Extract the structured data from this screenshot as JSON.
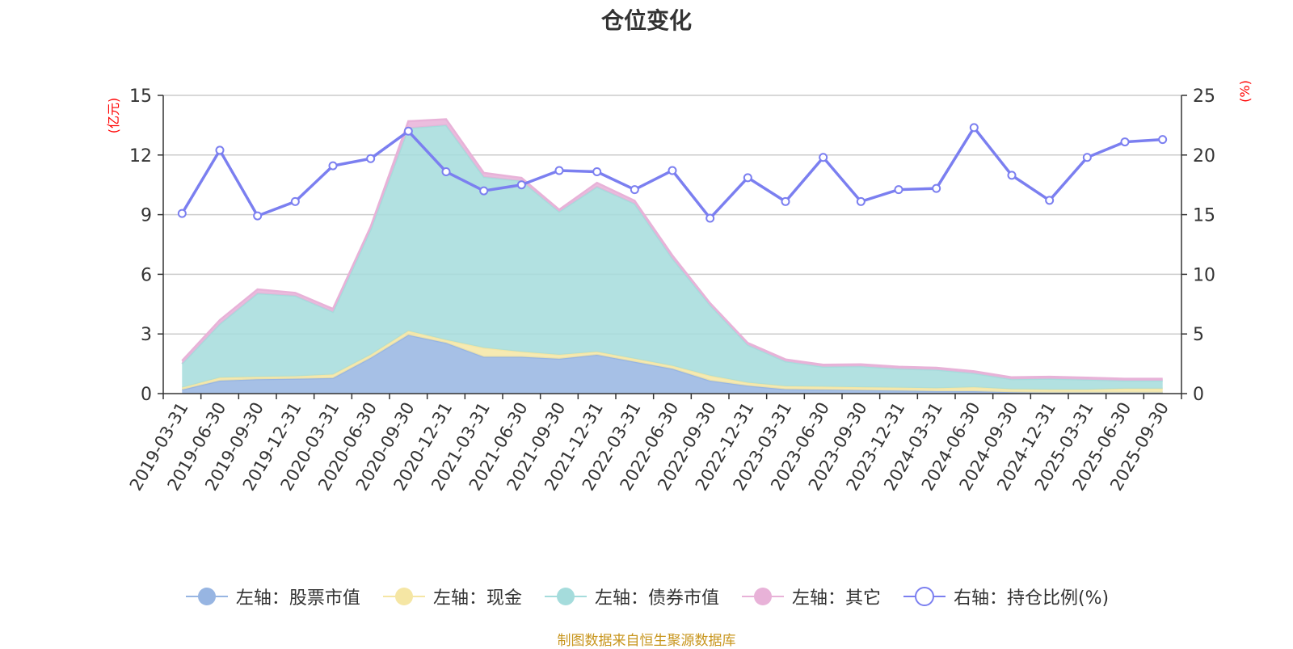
{
  "chart_data": {
    "type": "area",
    "title": "仓位变化",
    "left_axis_unit": "(亿元)",
    "right_axis_unit": "(%)",
    "left_ylim": [
      0,
      15
    ],
    "left_ticks": [
      0,
      3,
      6,
      9,
      12,
      15
    ],
    "right_ylim": [
      0,
      25
    ],
    "right_ticks": [
      0,
      5,
      10,
      15,
      20,
      25
    ],
    "grid": true,
    "legend_position": "bottom",
    "categories": [
      "2019-03-31",
      "2019-06-30",
      "2019-09-30",
      "2019-12-31",
      "2020-03-31",
      "2020-06-30",
      "2020-09-30",
      "2020-12-31",
      "2021-03-31",
      "2021-06-30",
      "2021-09-30",
      "2021-12-31",
      "2022-03-31",
      "2022-06-30",
      "2022-09-30",
      "2022-12-31",
      "2023-03-31",
      "2023-06-30",
      "2023-09-30",
      "2023-12-31",
      "2024-03-31",
      "2024-06-30",
      "2024-09-30",
      "2024-12-31",
      "2025-03-31",
      "2025-06-30",
      "2025-09-30"
    ],
    "series": [
      {
        "name": "左轴：股票市值",
        "axis": "left",
        "stack": true,
        "color": "#97b5e2",
        "values": [
          0.2,
          0.65,
          0.72,
          0.75,
          0.78,
          1.8,
          2.95,
          2.55,
          1.85,
          1.85,
          1.75,
          1.95,
          1.6,
          1.25,
          0.65,
          0.4,
          0.22,
          0.2,
          0.17,
          0.15,
          0.12,
          0.12,
          0.07,
          0.05,
          0.05,
          0.05,
          0.05
        ]
      },
      {
        "name": "左轴：现金",
        "axis": "left",
        "stack": true,
        "color": "#f5e6a4",
        "values": [
          0.1,
          0.15,
          0.12,
          0.12,
          0.18,
          0.15,
          0.2,
          0.15,
          0.45,
          0.25,
          0.2,
          0.15,
          0.15,
          0.15,
          0.25,
          0.15,
          0.15,
          0.15,
          0.15,
          0.15,
          0.15,
          0.2,
          0.15,
          0.15,
          0.15,
          0.2,
          0.2
        ]
      },
      {
        "name": "左轴：债券市值",
        "axis": "left",
        "stack": true,
        "color": "#a5dcdc",
        "values": [
          1.2,
          2.7,
          4.2,
          4.05,
          3.15,
          6.3,
          10.2,
          10.8,
          8.6,
          8.6,
          7.2,
          8.3,
          7.8,
          5.4,
          3.55,
          1.9,
          1.25,
          1.0,
          1.05,
          0.95,
          0.93,
          0.7,
          0.5,
          0.55,
          0.5,
          0.4,
          0.4
        ]
      },
      {
        "name": "左轴：其它",
        "axis": "left",
        "stack": true,
        "color": "#e8b2d8",
        "values": [
          0.15,
          0.2,
          0.2,
          0.15,
          0.15,
          0.15,
          0.35,
          0.3,
          0.2,
          0.15,
          0.1,
          0.2,
          0.15,
          0.15,
          0.1,
          0.1,
          0.1,
          0.1,
          0.1,
          0.1,
          0.1,
          0.1,
          0.1,
          0.1,
          0.1,
          0.1,
          0.1
        ]
      },
      {
        "name": "右轴：持仓比例(%)",
        "axis": "right",
        "stack": false,
        "color": "#7b7ff0",
        "values": [
          15.1,
          20.4,
          14.9,
          16.1,
          19.1,
          19.7,
          22.0,
          18.6,
          17.0,
          17.5,
          18.7,
          18.6,
          17.1,
          18.7,
          14.7,
          18.1,
          16.1,
          19.8,
          16.1,
          17.1,
          17.2,
          22.3,
          18.3,
          16.2,
          19.8,
          21.1,
          21.3
        ]
      }
    ]
  },
  "footer": {
    "source": "制图数据来自恒生聚源数据库"
  }
}
